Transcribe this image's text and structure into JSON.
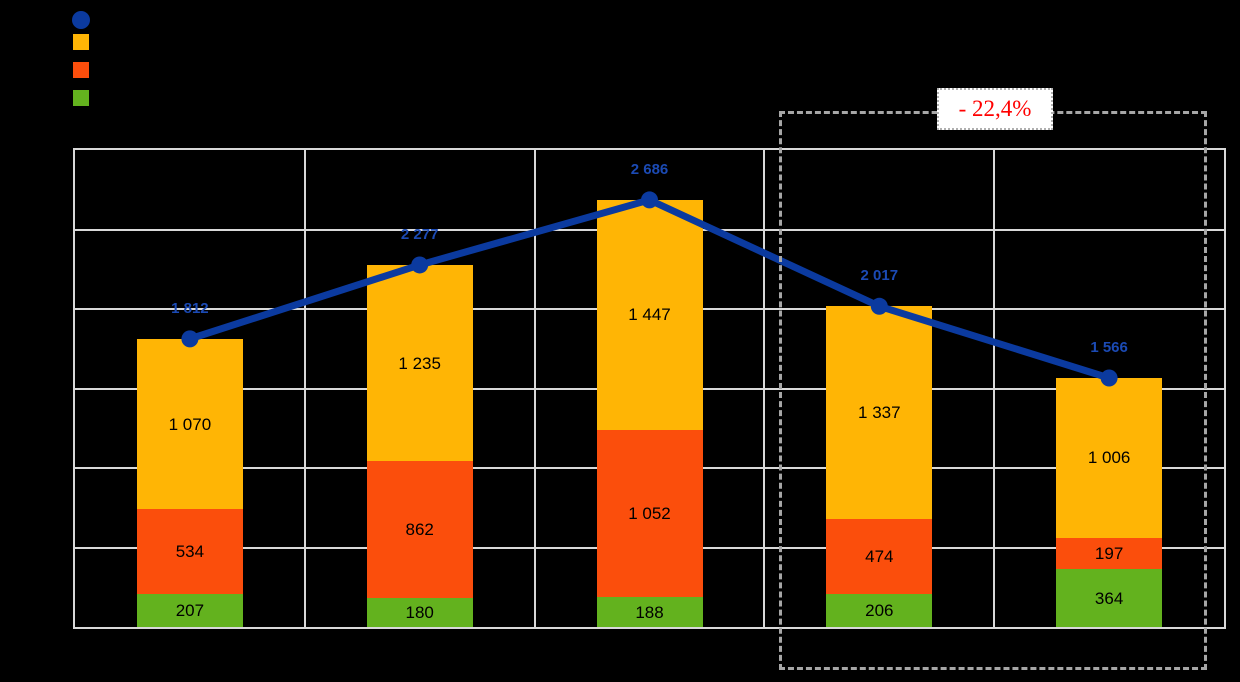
{
  "colors": {
    "background": "#000000",
    "plot_border": "#D9D9D9",
    "gridline": "#D9D9D9",
    "line": "#0B3A9F",
    "line_label": "#1B4AB4",
    "bar_yellow": "#FFB505",
    "bar_orange": "#FB4E0C",
    "bar_green": "#63B21E",
    "bar_label": "#000000",
    "annotation_text": "#FF0000",
    "dashed_box": "#A6A6A6"
  },
  "legend": {
    "labels_visible": false,
    "markers": [
      {
        "shape": "circle",
        "color": "#0B3A9F",
        "series": "total-line"
      },
      {
        "shape": "square",
        "color": "#FFB505",
        "series": "yellow-segment"
      },
      {
        "shape": "square",
        "color": "#FB4E0C",
        "series": "orange-segment"
      },
      {
        "shape": "square",
        "color": "#63B21E",
        "series": "green-segment"
      }
    ]
  },
  "chart_data": {
    "type": "bar",
    "subtype": "stacked-bars-with-total-line",
    "n_categories": 5,
    "category_labels_visible": false,
    "axis_tick_labels_visible": false,
    "grid": true,
    "ylim": [
      0,
      3000
    ],
    "gridline_step": 500,
    "series": [
      {
        "name": "green-segment",
        "color": "#63B21E",
        "values": [
          207,
          180,
          188,
          206,
          364
        ],
        "display": [
          "207",
          "180",
          "188",
          "206",
          "364"
        ]
      },
      {
        "name": "orange-segment",
        "color": "#FB4E0C",
        "values": [
          534,
          862,
          1052,
          474,
          197
        ],
        "display": [
          "534",
          "862",
          "1 052",
          "474",
          "197"
        ]
      },
      {
        "name": "yellow-segment",
        "color": "#FFB505",
        "values": [
          1070,
          1235,
          1447,
          1337,
          1006
        ],
        "display": [
          "1 070",
          "1 235",
          "1 447",
          "1 337",
          "1 006"
        ]
      }
    ],
    "line_series": {
      "name": "total-line",
      "color": "#0B3A9F",
      "label_color": "#1B4AB4",
      "values": [
        1812,
        2277,
        2686,
        2017,
        1566
      ],
      "display": [
        "1 812",
        "2 277",
        "2 686",
        "2 017",
        "1 566"
      ]
    },
    "annotation": {
      "text": "- 22,4%",
      "scope": "last-2-categories"
    }
  }
}
